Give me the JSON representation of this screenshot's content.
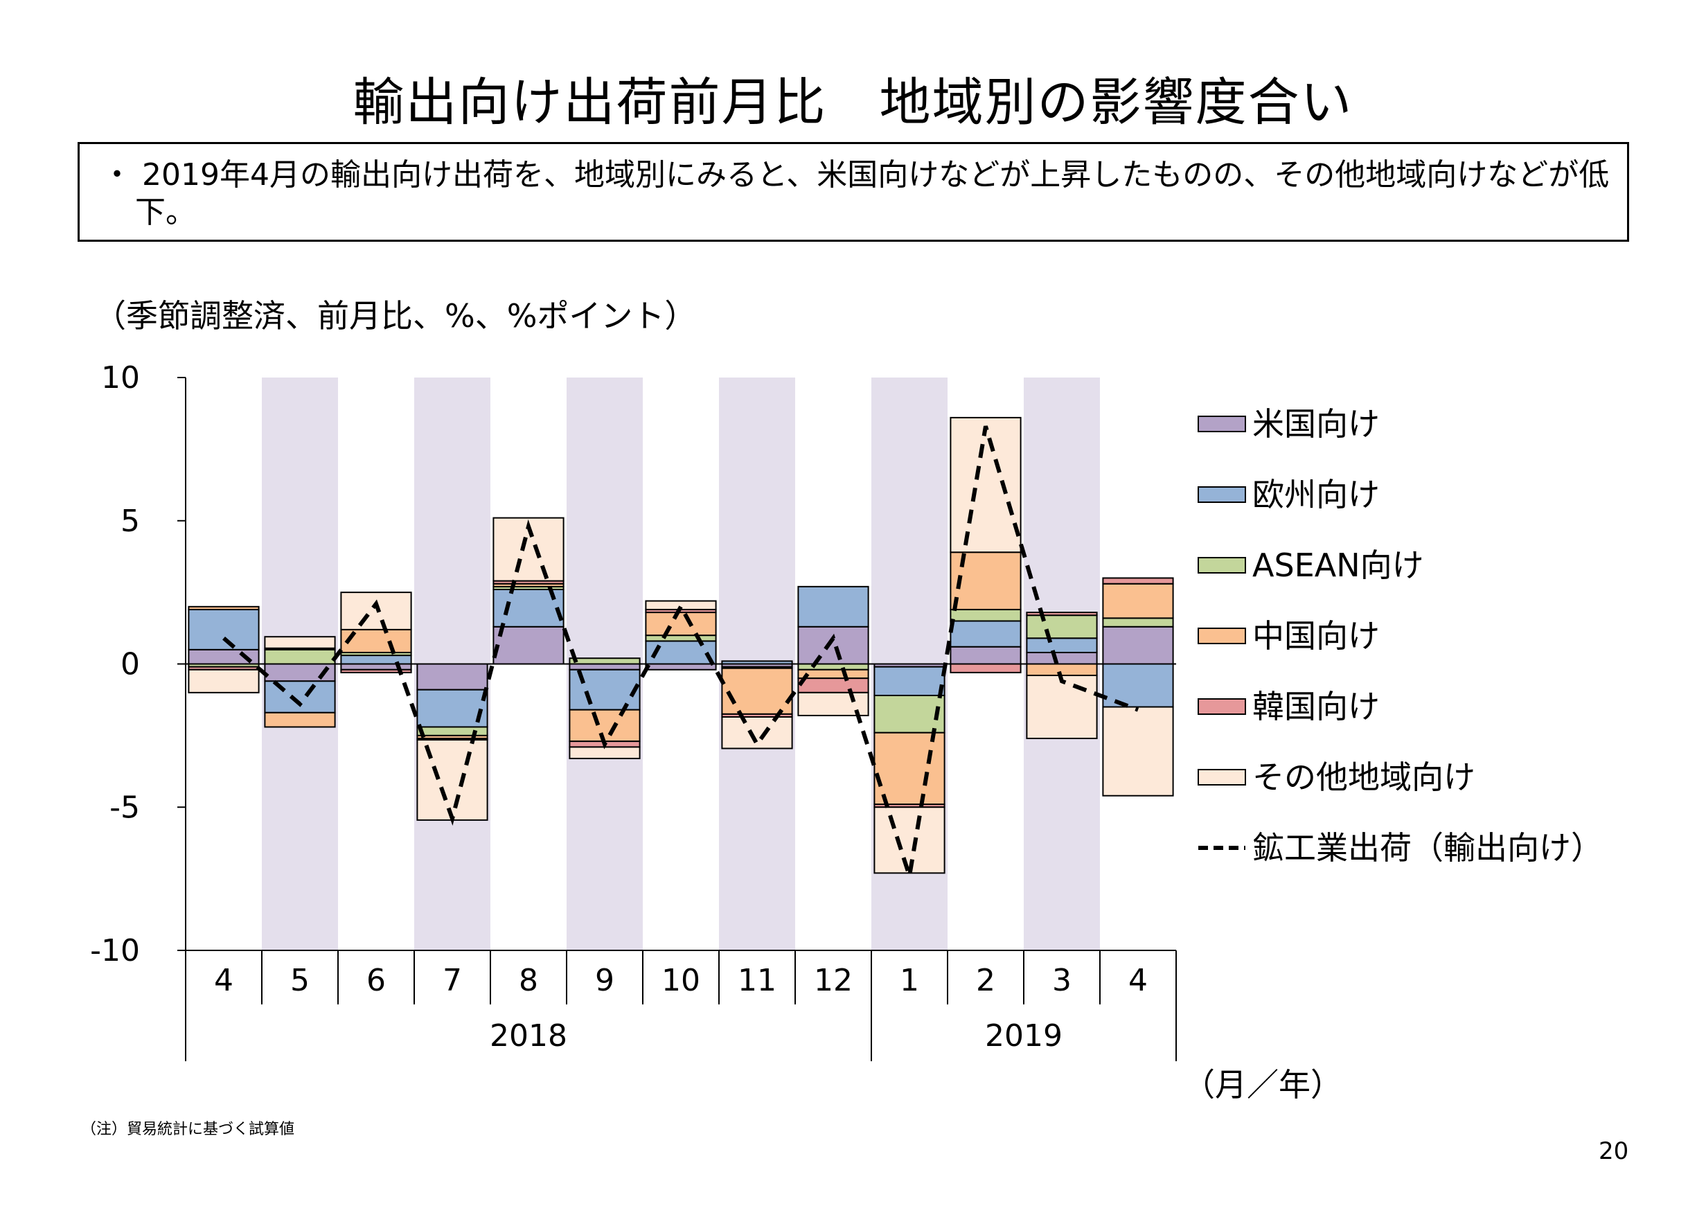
{
  "page": {
    "title": "輸出向け出荷前月比　地域別の影響度合い",
    "summary": "・ 2019年4月の輸出向け出荷を、地域別にみると、米国向けなどが上昇したものの、その他地域向けなどが低下。",
    "note": "（注）貿易統計に基づく試算値",
    "page_number": "20"
  },
  "chart_data": {
    "type": "bar",
    "stacked": true,
    "units_label": "（季節調整済、前月比、%、%ポイント）",
    "x_unit_label": "（月／年）",
    "categories": [
      "4",
      "5",
      "6",
      "7",
      "8",
      "9",
      "10",
      "11",
      "12",
      "1",
      "2",
      "3",
      "4"
    ],
    "year_groups": [
      {
        "label": "2018",
        "count": 9
      },
      {
        "label": "2019",
        "count": 4
      }
    ],
    "shaded_categories": [
      1,
      3,
      5,
      7,
      9,
      11
    ],
    "ylim": [
      -10,
      10
    ],
    "yticks": [
      -10,
      -5,
      0,
      5,
      10
    ],
    "ytick_labels": [
      "-10",
      "-5",
      "0",
      "5",
      "10"
    ],
    "series": [
      {
        "name": "米国向け",
        "color": "#b3a2c7",
        "values": [
          0.5,
          -0.6,
          -0.2,
          -0.9,
          1.3,
          -0.2,
          -0.2,
          -0.1,
          1.3,
          -0.1,
          0.6,
          0.4,
          1.3
        ]
      },
      {
        "name": "欧州向け",
        "color": "#95b3d7",
        "values": [
          1.4,
          -1.1,
          0.3,
          -1.3,
          1.3,
          -1.4,
          0.8,
          0.1,
          1.4,
          -1.0,
          0.9,
          0.5,
          -1.5
        ]
      },
      {
        "name": "ASEAN向け",
        "color": "#c3d69b",
        "values": [
          -0.1,
          0.5,
          0.1,
          -0.3,
          0.1,
          0.2,
          0.2,
          -0.05,
          -0.2,
          -1.3,
          0.4,
          0.8,
          0.3
        ]
      },
      {
        "name": "中国向け",
        "color": "#fac090",
        "values": [
          0.1,
          -0.5,
          0.8,
          -0.1,
          0.1,
          -1.1,
          0.8,
          -1.6,
          -0.3,
          -2.5,
          2.0,
          -0.4,
          1.2
        ]
      },
      {
        "name": "韓国向け",
        "color": "#e6989a",
        "values": [
          -0.1,
          0.05,
          -0.1,
          -0.05,
          0.1,
          -0.2,
          0.1,
          -0.1,
          -0.5,
          -0.1,
          -0.3,
          0.1,
          0.2
        ]
      },
      {
        "name": "その他地域向け",
        "color": "#fde9d9",
        "values": [
          -0.8,
          0.4,
          1.3,
          -2.8,
          2.2,
          -0.4,
          0.3,
          -1.1,
          -0.8,
          -2.3,
          4.7,
          -2.2,
          -3.1
        ]
      }
    ],
    "line": {
      "name": "鉱工業出荷（輸出向け）",
      "color": "#000000",
      "dashed": true,
      "values": [
        0.9,
        -1.4,
        2.1,
        -5.4,
        4.8,
        -2.8,
        2.0,
        -2.8,
        0.9,
        -7.4,
        8.3,
        -0.6,
        -1.6
      ]
    }
  }
}
